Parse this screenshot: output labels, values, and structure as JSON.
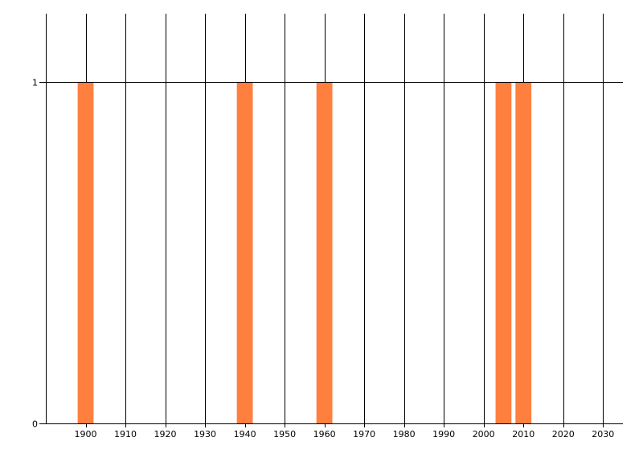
{
  "chart_data": {
    "type": "bar",
    "x": [
      1900,
      1940,
      1960,
      2005,
      2010
    ],
    "values": [
      1,
      1,
      1,
      1,
      1
    ],
    "bar_width_years": 4,
    "title": "",
    "xlabel": "",
    "ylabel": "",
    "xlim": [
      1890,
      2035
    ],
    "ylim": [
      0,
      1.2
    ],
    "xticks": [
      1900,
      1910,
      1920,
      1930,
      1940,
      1950,
      1960,
      1970,
      1980,
      1990,
      2000,
      2010,
      2020,
      2030
    ],
    "yticks": [
      0,
      1
    ],
    "grid": "vertical lines every 10 years plus horizontal line at 1",
    "legend": "none",
    "bar_color": "#ff7f3f"
  }
}
